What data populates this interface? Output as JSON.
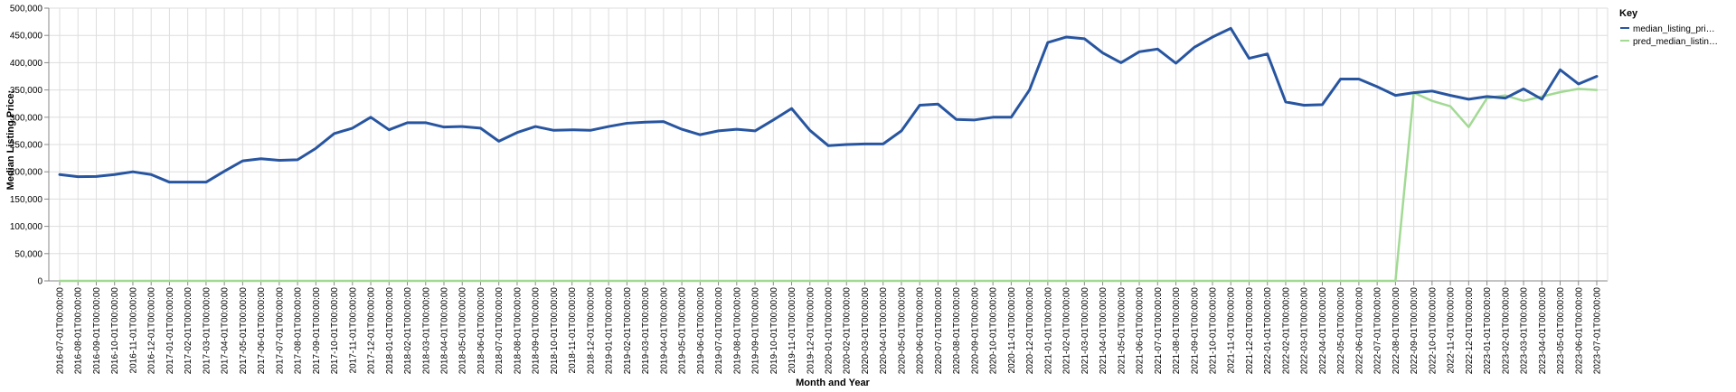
{
  "chart_data": {
    "type": "line",
    "xlabel": "Month and Year",
    "ylabel": "Median Listing Price:",
    "ylim": [
      0,
      500000
    ],
    "yticks": [
      "0",
      "50,000",
      "100,000",
      "150,000",
      "200,000",
      "250,000",
      "300,000",
      "350,000",
      "400,000",
      "450,000",
      "500,000"
    ],
    "grid": true,
    "legend": {
      "title": "Key",
      "placement": "top-right",
      "entries": [
        "median_listing_pri…",
        "pred_median_listin…"
      ]
    },
    "x": [
      "2016-07-01T00:00:00",
      "2016-08-01T00:00:00",
      "2016-09-01T00:00:00",
      "2016-10-01T00:00:00",
      "2016-11-01T00:00:00",
      "2016-12-01T00:00:00",
      "2017-01-01T00:00:00",
      "2017-02-01T00:00:00",
      "2017-03-01T00:00:00",
      "2017-04-01T00:00:00",
      "2017-05-01T00:00:00",
      "2017-06-01T00:00:00",
      "2017-07-01T00:00:00",
      "2017-08-01T00:00:00",
      "2017-09-01T00:00:00",
      "2017-10-01T00:00:00",
      "2017-11-01T00:00:00",
      "2017-12-01T00:00:00",
      "2018-01-01T00:00:00",
      "2018-02-01T00:00:00",
      "2018-03-01T00:00:00",
      "2018-04-01T00:00:00",
      "2018-05-01T00:00:00",
      "2018-06-01T00:00:00",
      "2018-07-01T00:00:00",
      "2018-08-01T00:00:00",
      "2018-09-01T00:00:00",
      "2018-10-01T00:00:00",
      "2018-11-01T00:00:00",
      "2018-12-01T00:00:00",
      "2019-01-01T00:00:00",
      "2019-02-01T00:00:00",
      "2019-03-01T00:00:00",
      "2019-04-01T00:00:00",
      "2019-05-01T00:00:00",
      "2019-06-01T00:00:00",
      "2019-07-01T00:00:00",
      "2019-08-01T00:00:00",
      "2019-09-01T00:00:00",
      "2019-10-01T00:00:00",
      "2019-11-01T00:00:00",
      "2019-12-01T00:00:00",
      "2020-01-01T00:00:00",
      "2020-02-01T00:00:00",
      "2020-03-01T00:00:00",
      "2020-04-01T00:00:00",
      "2020-05-01T00:00:00",
      "2020-06-01T00:00:00",
      "2020-07-01T00:00:00",
      "2020-08-01T00:00:00",
      "2020-09-01T00:00:00",
      "2020-10-01T00:00:00",
      "2020-11-01T00:00:00",
      "2020-12-01T00:00:00",
      "2021-01-01T00:00:00",
      "2021-02-01T00:00:00",
      "2021-03-01T00:00:00",
      "2021-04-01T00:00:00",
      "2021-05-01T00:00:00",
      "2021-06-01T00:00:00",
      "2021-07-01T00:00:00",
      "2021-08-01T00:00:00",
      "2021-09-01T00:00:00",
      "2021-10-01T00:00:00",
      "2021-11-01T00:00:00",
      "2021-12-01T00:00:00",
      "2022-01-01T00:00:00",
      "2022-02-01T00:00:00",
      "2022-03-01T00:00:00",
      "2022-04-01T00:00:00",
      "2022-05-01T00:00:00",
      "2022-06-01T00:00:00",
      "2022-07-01T00:00:00",
      "2022-08-01T00:00:00",
      "2022-09-01T00:00:00",
      "2022-10-01T00:00:00",
      "2022-11-01T00:00:00",
      "2022-12-01T00:00:00",
      "2023-01-01T00:00:00",
      "2023-02-01T00:00:00",
      "2023-03-01T00:00:00",
      "2023-04-01T00:00:00",
      "2023-05-01T00:00:00",
      "2023-06-01T00:00:00",
      "2023-07-01T00:00:00"
    ],
    "series": [
      {
        "name": "median_listing_pri…",
        "color": "#2855a0",
        "values": [
          195000,
          191000,
          191500,
          195000,
          200000,
          195000,
          181000,
          181000,
          181000,
          201000,
          220000,
          224000,
          221000,
          222000,
          243000,
          270000,
          280000,
          300000,
          277000,
          290000,
          290000,
          282000,
          283000,
          280000,
          256000,
          272000,
          283000,
          276000,
          277000,
          276000,
          283000,
          289000,
          291000,
          292000,
          278000,
          268000,
          275000,
          278000,
          275000,
          295000,
          316000,
          276000,
          248000,
          250000,
          251000,
          251000,
          275000,
          322000,
          324000,
          296000,
          295000,
          300000,
          300000,
          350000,
          437000,
          447000,
          444000,
          418000,
          400000,
          420000,
          425000,
          399000,
          428000,
          447000,
          463000,
          408000,
          416000,
          328000,
          322000,
          323000,
          370000,
          370000,
          356000,
          340000,
          345000,
          348000,
          340000,
          333000,
          338000,
          335000,
          352000,
          333000,
          387000,
          361000,
          375000
        ]
      },
      {
        "name": "pred_median_listin…",
        "color": "#a2da94",
        "values": [
          0,
          0,
          0,
          0,
          0,
          0,
          0,
          0,
          0,
          0,
          0,
          0,
          0,
          0,
          0,
          0,
          0,
          0,
          0,
          0,
          0,
          0,
          0,
          0,
          0,
          0,
          0,
          0,
          0,
          0,
          0,
          0,
          0,
          0,
          0,
          0,
          0,
          0,
          0,
          0,
          0,
          0,
          0,
          0,
          0,
          0,
          0,
          0,
          0,
          0,
          0,
          0,
          0,
          0,
          0,
          0,
          0,
          0,
          0,
          0,
          0,
          0,
          0,
          0,
          0,
          0,
          0,
          0,
          0,
          0,
          0,
          0,
          0,
          0,
          345000,
          330000,
          320000,
          282000,
          335000,
          340000,
          330000,
          338000,
          346000,
          352000,
          350000
        ]
      }
    ]
  }
}
